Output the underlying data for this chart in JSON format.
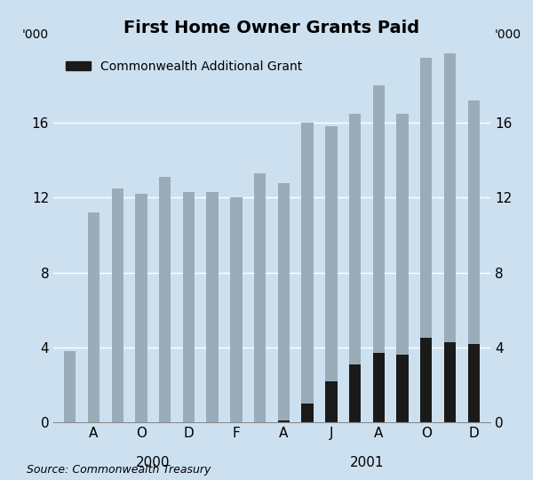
{
  "title": "First Home Owner Grants Paid",
  "source": "Source: Commonwealth Treasury",
  "background_color": "#cce0f0",
  "bar_color_grey": "#9aacb8",
  "bar_color_black": "#1a1a1a",
  "categories": [
    "",
    "A",
    "",
    "O",
    "",
    "D",
    "",
    "F",
    "",
    "A",
    "",
    "J",
    "",
    "A",
    "",
    "O",
    "",
    "D"
  ],
  "total_values": [
    3.8,
    11.2,
    12.5,
    12.2,
    13.1,
    12.3,
    12.3,
    12.0,
    13.3,
    12.8,
    16.0,
    15.8,
    16.5,
    18.0,
    16.5,
    19.5,
    19.7,
    17.2
  ],
  "black_values": [
    0,
    0,
    0,
    0,
    0,
    0,
    0,
    0,
    0,
    0.1,
    1.0,
    2.2,
    3.1,
    3.7,
    3.6,
    4.5,
    4.3,
    4.2
  ],
  "ylim": [
    0,
    20
  ],
  "yticks": [
    0,
    4,
    8,
    12,
    16
  ],
  "legend_label": "Commonwealth Additional Grant",
  "figsize": [
    6.0,
    5.4
  ],
  "dpi": 100,
  "bar_width": 0.5
}
